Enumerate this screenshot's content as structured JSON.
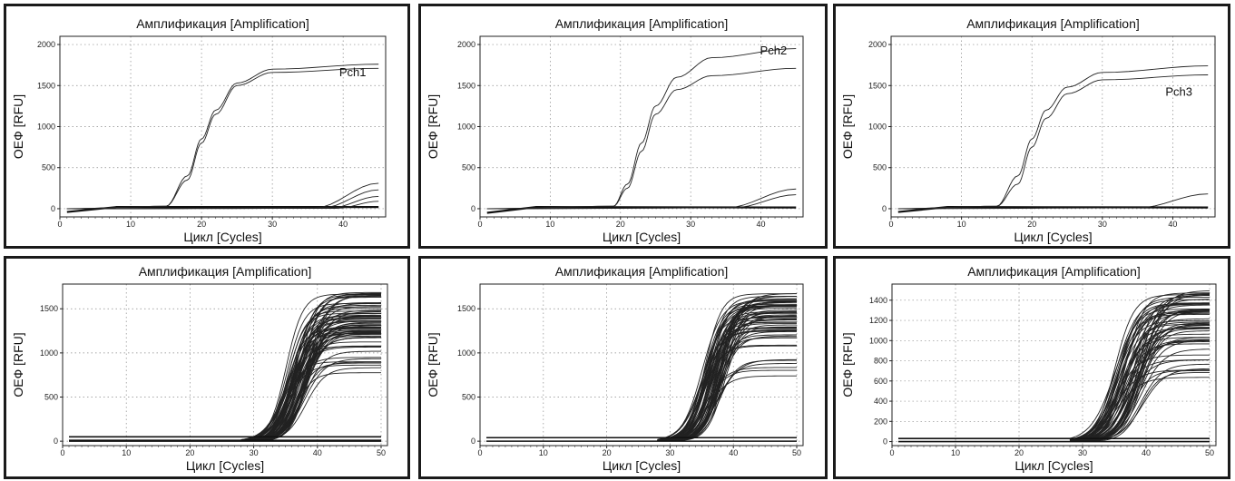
{
  "chart_data": [
    {
      "type": "line",
      "title": "Амплификация [Amplification]",
      "xlabel": "Цикл [Cycles]",
      "ylabel": "ОЕФ [RFU]",
      "xlim": [
        0,
        46
      ],
      "ylim": [
        -100,
        2100
      ],
      "xticks": [
        0,
        10,
        20,
        30,
        40
      ],
      "yticks": [
        0,
        500,
        1000,
        1500,
        2000
      ],
      "grid": true,
      "annotation": "Pch1",
      "series": [
        {
          "values": [
            {
              "x": 1,
              "y": 0
            },
            {
              "x": 15,
              "y": 30
            },
            {
              "x": 18,
              "y": 400
            },
            {
              "x": 20,
              "y": 850
            },
            {
              "x": 22,
              "y": 1200
            },
            {
              "x": 25,
              "y": 1530
            },
            {
              "x": 30,
              "y": 1700
            },
            {
              "x": 45,
              "y": 1760
            }
          ]
        },
        {
          "values": [
            {
              "x": 1,
              "y": 0
            },
            {
              "x": 15,
              "y": 30
            },
            {
              "x": 18,
              "y": 350
            },
            {
              "x": 20,
              "y": 800
            },
            {
              "x": 22,
              "y": 1150
            },
            {
              "x": 25,
              "y": 1500
            },
            {
              "x": 30,
              "y": 1660
            },
            {
              "x": 45,
              "y": 1710
            }
          ]
        },
        {
          "values": [
            {
              "x": 1,
              "y": 0
            },
            {
              "x": 36,
              "y": 10
            },
            {
              "x": 45,
              "y": 310
            }
          ]
        },
        {
          "values": [
            {
              "x": 1,
              "y": 0
            },
            {
              "x": 37,
              "y": 10
            },
            {
              "x": 45,
              "y": 230
            }
          ]
        },
        {
          "values": [
            {
              "x": 1,
              "y": 0
            },
            {
              "x": 38,
              "y": 5
            },
            {
              "x": 45,
              "y": 150
            }
          ]
        },
        {
          "values": [
            {
              "x": 1,
              "y": 0
            },
            {
              "x": 39,
              "y": 5
            },
            {
              "x": 45,
              "y": 90
            }
          ]
        }
      ],
      "baseline_band": [
        {
          "x": 1,
          "y": -40
        },
        {
          "x": 8,
          "y": 20
        },
        {
          "x": 45,
          "y": 20
        }
      ]
    },
    {
      "type": "line",
      "title": "Амплификация [Amplification]",
      "xlabel": "Цикл [Cycles]",
      "ylabel": "ОЕФ [RFU]",
      "xlim": [
        0,
        46
      ],
      "ylim": [
        -100,
        2100
      ],
      "xticks": [
        0,
        10,
        20,
        30,
        40
      ],
      "yticks": [
        0,
        500,
        1000,
        1500,
        2000
      ],
      "grid": true,
      "annotation": "Pch2",
      "series": [
        {
          "values": [
            {
              "x": 1,
              "y": 0
            },
            {
              "x": 19,
              "y": 30
            },
            {
              "x": 21,
              "y": 300
            },
            {
              "x": 23,
              "y": 800
            },
            {
              "x": 25,
              "y": 1250
            },
            {
              "x": 28,
              "y": 1600
            },
            {
              "x": 33,
              "y": 1840
            },
            {
              "x": 45,
              "y": 1950
            }
          ]
        },
        {
          "values": [
            {
              "x": 1,
              "y": 0
            },
            {
              "x": 19,
              "y": 30
            },
            {
              "x": 21,
              "y": 250
            },
            {
              "x": 23,
              "y": 700
            },
            {
              "x": 25,
              "y": 1150
            },
            {
              "x": 28,
              "y": 1450
            },
            {
              "x": 33,
              "y": 1620
            },
            {
              "x": 45,
              "y": 1710
            }
          ]
        },
        {
          "values": [
            {
              "x": 1,
              "y": 0
            },
            {
              "x": 35,
              "y": 10
            },
            {
              "x": 45,
              "y": 240
            }
          ]
        },
        {
          "values": [
            {
              "x": 1,
              "y": 0
            },
            {
              "x": 36,
              "y": 10
            },
            {
              "x": 45,
              "y": 170
            }
          ]
        }
      ],
      "baseline_band": [
        {
          "x": 1,
          "y": -50
        },
        {
          "x": 8,
          "y": 20
        },
        {
          "x": 45,
          "y": 15
        }
      ]
    },
    {
      "type": "line",
      "title": "Амплификация [Amplification]",
      "xlabel": "Цикл [Cycles]",
      "ylabel": "ОЕФ [RFU]",
      "xlim": [
        0,
        46
      ],
      "ylim": [
        -100,
        2100
      ],
      "xticks": [
        0,
        10,
        20,
        30,
        40
      ],
      "yticks": [
        0,
        500,
        1000,
        1500,
        2000
      ],
      "grid": true,
      "annotation": "Pch3",
      "series": [
        {
          "values": [
            {
              "x": 1,
              "y": 0
            },
            {
              "x": 15,
              "y": 30
            },
            {
              "x": 18,
              "y": 400
            },
            {
              "x": 20,
              "y": 850
            },
            {
              "x": 22,
              "y": 1200
            },
            {
              "x": 25,
              "y": 1480
            },
            {
              "x": 30,
              "y": 1660
            },
            {
              "x": 45,
              "y": 1740
            }
          ]
        },
        {
          "values": [
            {
              "x": 1,
              "y": 0
            },
            {
              "x": 15,
              "y": 30
            },
            {
              "x": 18,
              "y": 300
            },
            {
              "x": 20,
              "y": 750
            },
            {
              "x": 22,
              "y": 1100
            },
            {
              "x": 25,
              "y": 1400
            },
            {
              "x": 30,
              "y": 1570
            },
            {
              "x": 45,
              "y": 1630
            }
          ]
        },
        {
          "values": [
            {
              "x": 1,
              "y": 0
            },
            {
              "x": 35,
              "y": 10
            },
            {
              "x": 45,
              "y": 180
            }
          ]
        }
      ],
      "baseline_band": [
        {
          "x": 1,
          "y": -40
        },
        {
          "x": 8,
          "y": 20
        },
        {
          "x": 45,
          "y": 15
        }
      ]
    },
    {
      "type": "line",
      "title": "Амплификация [Amplification]",
      "xlabel": "Цикл [Cycles]",
      "ylabel": "ОЕФ [RFU]",
      "xlim": [
        0,
        51
      ],
      "ylim": [
        -50,
        1780
      ],
      "xticks": [
        0,
        10,
        20,
        30,
        40,
        50
      ],
      "yticks": [
        0,
        500,
        1000,
        1500
      ],
      "grid": true,
      "curve_family": {
        "count": 72,
        "midpoint_range": [
          35,
          38.5
        ],
        "plateau_range": [
          740,
          1690
        ],
        "steepness": 0.68
      },
      "flat_lines": [
        50,
        10,
        0
      ]
    },
    {
      "type": "line",
      "title": "Амплификация [Amplification]",
      "xlabel": "Цикл [Cycles]",
      "ylabel": "ОЕФ [RFU]",
      "xlim": [
        0,
        51
      ],
      "ylim": [
        -50,
        1780
      ],
      "xticks": [
        0,
        10,
        20,
        30,
        40,
        50
      ],
      "yticks": [
        0,
        500,
        1000,
        1500
      ],
      "grid": true,
      "curve_family": {
        "count": 64,
        "midpoint_range": [
          35,
          38.5
        ],
        "plateau_range": [
          740,
          1690
        ],
        "steepness": 0.68
      },
      "flat_lines": [
        40,
        0
      ]
    },
    {
      "type": "line",
      "title": "Амплификация [Amplification]",
      "xlabel": "Цикл [Cycles]",
      "ylabel": "ОЕФ [RFU]",
      "xlim": [
        0,
        51
      ],
      "ylim": [
        -40,
        1560
      ],
      "xticks": [
        0,
        10,
        20,
        30,
        40,
        50
      ],
      "yticks": [
        0,
        200,
        400,
        600,
        800,
        1000,
        1200,
        1400
      ],
      "grid": true,
      "curve_family": {
        "count": 60,
        "midpoint_range": [
          35,
          39.5
        ],
        "plateau_range": [
          580,
          1510
        ],
        "steepness": 0.62
      },
      "flat_lines": [
        30,
        0
      ]
    }
  ]
}
